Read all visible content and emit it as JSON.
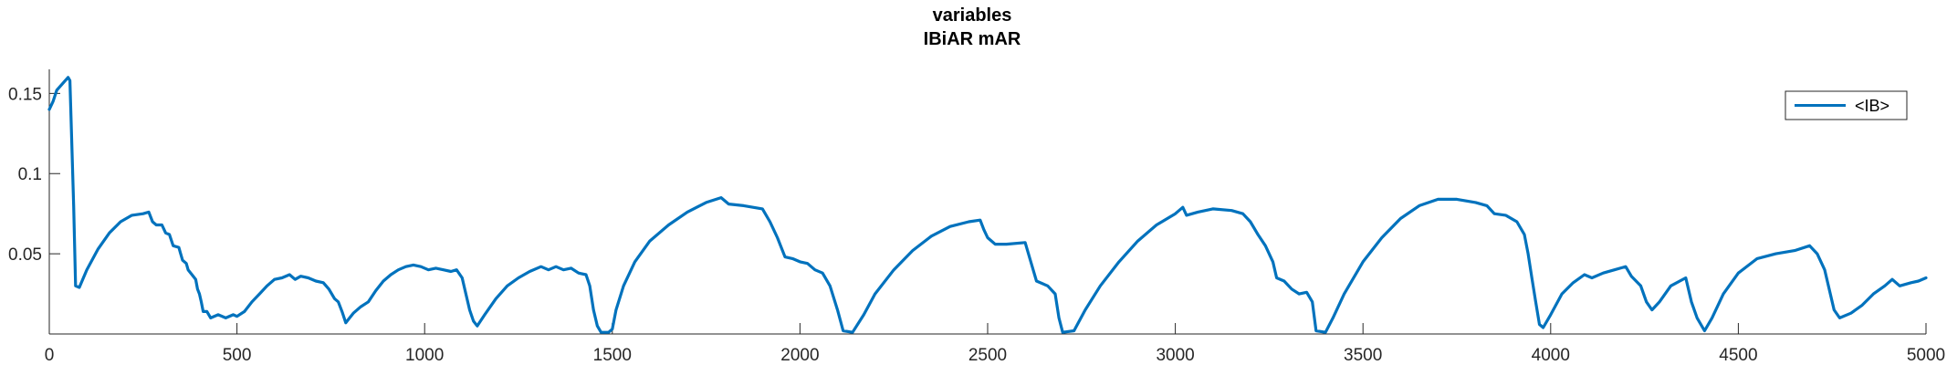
{
  "chart_data": {
    "type": "line",
    "title": "variables",
    "subtitle": "IBiAR mAR",
    "xlabel": "",
    "ylabel": "",
    "xlim": [
      0,
      5000
    ],
    "ylim": [
      0,
      0.165
    ],
    "x_ticks": [
      0,
      500,
      1000,
      1500,
      2000,
      2500,
      3000,
      3500,
      4000,
      4500,
      5000
    ],
    "x_tick_labels": [
      "0",
      "500",
      "1000",
      "1500",
      "2000",
      "2500",
      "3000",
      "3500",
      "4000",
      "4500",
      "5000"
    ],
    "y_ticks": [
      0.05,
      0.1,
      0.15
    ],
    "y_tick_labels": [
      "0.05",
      "0.1",
      "0.15"
    ],
    "grid": false,
    "legend_position": "top-right",
    "series": [
      {
        "name": "<IB>",
        "color": "#0072BD",
        "points": [
          [
            0,
            0.14
          ],
          [
            10,
            0.145
          ],
          [
            20,
            0.152
          ],
          [
            35,
            0.156
          ],
          [
            50,
            0.16
          ],
          [
            55,
            0.158
          ],
          [
            65,
            0.08
          ],
          [
            70,
            0.03
          ],
          [
            80,
            0.029
          ],
          [
            100,
            0.04
          ],
          [
            130,
            0.053
          ],
          [
            160,
            0.063
          ],
          [
            190,
            0.07
          ],
          [
            220,
            0.074
          ],
          [
            250,
            0.075
          ],
          [
            265,
            0.076
          ],
          [
            275,
            0.07
          ],
          [
            285,
            0.068
          ],
          [
            300,
            0.068
          ],
          [
            310,
            0.063
          ],
          [
            320,
            0.062
          ],
          [
            330,
            0.055
          ],
          [
            345,
            0.054
          ],
          [
            350,
            0.05
          ],
          [
            355,
            0.046
          ],
          [
            365,
            0.044
          ],
          [
            370,
            0.04
          ],
          [
            380,
            0.037
          ],
          [
            390,
            0.034
          ],
          [
            395,
            0.028
          ],
          [
            400,
            0.025
          ],
          [
            405,
            0.02
          ],
          [
            410,
            0.014
          ],
          [
            420,
            0.014
          ],
          [
            430,
            0.01
          ],
          [
            450,
            0.012
          ],
          [
            470,
            0.01
          ],
          [
            490,
            0.012
          ],
          [
            500,
            0.011
          ],
          [
            520,
            0.014
          ],
          [
            540,
            0.02
          ],
          [
            560,
            0.025
          ],
          [
            580,
            0.03
          ],
          [
            600,
            0.034
          ],
          [
            620,
            0.035
          ],
          [
            640,
            0.037
          ],
          [
            655,
            0.034
          ],
          [
            670,
            0.036
          ],
          [
            690,
            0.035
          ],
          [
            710,
            0.033
          ],
          [
            730,
            0.032
          ],
          [
            745,
            0.028
          ],
          [
            760,
            0.022
          ],
          [
            770,
            0.02
          ],
          [
            780,
            0.014
          ],
          [
            790,
            0.007
          ],
          [
            800,
            0.01
          ],
          [
            810,
            0.013
          ],
          [
            830,
            0.017
          ],
          [
            850,
            0.02
          ],
          [
            870,
            0.027
          ],
          [
            890,
            0.033
          ],
          [
            910,
            0.037
          ],
          [
            930,
            0.04
          ],
          [
            950,
            0.042
          ],
          [
            970,
            0.043
          ],
          [
            990,
            0.042
          ],
          [
            1010,
            0.04
          ],
          [
            1030,
            0.041
          ],
          [
            1050,
            0.04
          ],
          [
            1070,
            0.039
          ],
          [
            1085,
            0.04
          ],
          [
            1100,
            0.035
          ],
          [
            1110,
            0.025
          ],
          [
            1120,
            0.015
          ],
          [
            1130,
            0.008
          ],
          [
            1140,
            0.005
          ],
          [
            1160,
            0.012
          ],
          [
            1190,
            0.022
          ],
          [
            1220,
            0.03
          ],
          [
            1250,
            0.035
          ],
          [
            1280,
            0.039
          ],
          [
            1310,
            0.042
          ],
          [
            1330,
            0.04
          ],
          [
            1350,
            0.042
          ],
          [
            1370,
            0.04
          ],
          [
            1390,
            0.041
          ],
          [
            1410,
            0.038
          ],
          [
            1430,
            0.037
          ],
          [
            1440,
            0.03
          ],
          [
            1450,
            0.015
          ],
          [
            1460,
            0.005
          ],
          [
            1470,
            0.001
          ],
          [
            1490,
            0.001
          ],
          [
            1500,
            0.003
          ],
          [
            1510,
            0.015
          ],
          [
            1530,
            0.03
          ],
          [
            1560,
            0.045
          ],
          [
            1600,
            0.058
          ],
          [
            1650,
            0.068
          ],
          [
            1700,
            0.076
          ],
          [
            1750,
            0.082
          ],
          [
            1790,
            0.085
          ],
          [
            1810,
            0.081
          ],
          [
            1850,
            0.08
          ],
          [
            1900,
            0.078
          ],
          [
            1920,
            0.07
          ],
          [
            1940,
            0.06
          ],
          [
            1960,
            0.048
          ],
          [
            1980,
            0.047
          ],
          [
            2000,
            0.045
          ],
          [
            2020,
            0.044
          ],
          [
            2040,
            0.04
          ],
          [
            2060,
            0.038
          ],
          [
            2080,
            0.03
          ],
          [
            2100,
            0.015
          ],
          [
            2115,
            0.002
          ],
          [
            2140,
            0.001
          ],
          [
            2170,
            0.012
          ],
          [
            2200,
            0.025
          ],
          [
            2250,
            0.04
          ],
          [
            2300,
            0.052
          ],
          [
            2350,
            0.061
          ],
          [
            2400,
            0.067
          ],
          [
            2450,
            0.07
          ],
          [
            2480,
            0.071
          ],
          [
            2490,
            0.065
          ],
          [
            2500,
            0.06
          ],
          [
            2520,
            0.056
          ],
          [
            2550,
            0.056
          ],
          [
            2600,
            0.057
          ],
          [
            2615,
            0.045
          ],
          [
            2630,
            0.033
          ],
          [
            2660,
            0.03
          ],
          [
            2680,
            0.025
          ],
          [
            2690,
            0.01
          ],
          [
            2700,
            0.001
          ],
          [
            2730,
            0.002
          ],
          [
            2760,
            0.015
          ],
          [
            2800,
            0.03
          ],
          [
            2850,
            0.045
          ],
          [
            2900,
            0.058
          ],
          [
            2950,
            0.068
          ],
          [
            3000,
            0.075
          ],
          [
            3020,
            0.079
          ],
          [
            3030,
            0.074
          ],
          [
            3060,
            0.076
          ],
          [
            3100,
            0.078
          ],
          [
            3150,
            0.077
          ],
          [
            3180,
            0.075
          ],
          [
            3200,
            0.07
          ],
          [
            3220,
            0.062
          ],
          [
            3240,
            0.055
          ],
          [
            3260,
            0.045
          ],
          [
            3270,
            0.035
          ],
          [
            3290,
            0.033
          ],
          [
            3310,
            0.028
          ],
          [
            3330,
            0.025
          ],
          [
            3350,
            0.026
          ],
          [
            3365,
            0.02
          ],
          [
            3375,
            0.002
          ],
          [
            3400,
            0.001
          ],
          [
            3420,
            0.01
          ],
          [
            3450,
            0.025
          ],
          [
            3500,
            0.045
          ],
          [
            3550,
            0.06
          ],
          [
            3600,
            0.072
          ],
          [
            3650,
            0.08
          ],
          [
            3700,
            0.084
          ],
          [
            3750,
            0.084
          ],
          [
            3800,
            0.082
          ],
          [
            3830,
            0.08
          ],
          [
            3850,
            0.075
          ],
          [
            3880,
            0.074
          ],
          [
            3910,
            0.07
          ],
          [
            3930,
            0.062
          ],
          [
            3940,
            0.05
          ],
          [
            3950,
            0.035
          ],
          [
            3960,
            0.02
          ],
          [
            3970,
            0.006
          ],
          [
            3980,
            0.004
          ],
          [
            4000,
            0.012
          ],
          [
            4030,
            0.025
          ],
          [
            4060,
            0.032
          ],
          [
            4090,
            0.037
          ],
          [
            4110,
            0.035
          ],
          [
            4140,
            0.038
          ],
          [
            4170,
            0.04
          ],
          [
            4200,
            0.042
          ],
          [
            4215,
            0.036
          ],
          [
            4240,
            0.03
          ],
          [
            4255,
            0.02
          ],
          [
            4270,
            0.015
          ],
          [
            4290,
            0.02
          ],
          [
            4320,
            0.03
          ],
          [
            4360,
            0.035
          ],
          [
            4375,
            0.02
          ],
          [
            4390,
            0.01
          ],
          [
            4410,
            0.002
          ],
          [
            4430,
            0.01
          ],
          [
            4460,
            0.025
          ],
          [
            4500,
            0.038
          ],
          [
            4550,
            0.047
          ],
          [
            4600,
            0.05
          ],
          [
            4650,
            0.052
          ],
          [
            4690,
            0.055
          ],
          [
            4710,
            0.05
          ],
          [
            4730,
            0.04
          ],
          [
            4740,
            0.03
          ],
          [
            4755,
            0.015
          ],
          [
            4770,
            0.01
          ],
          [
            4800,
            0.013
          ],
          [
            4830,
            0.018
          ],
          [
            4860,
            0.025
          ],
          [
            4890,
            0.03
          ],
          [
            4910,
            0.034
          ],
          [
            4930,
            0.03
          ],
          [
            4960,
            0.032
          ],
          [
            4980,
            0.033
          ],
          [
            5000,
            0.035
          ]
        ]
      }
    ]
  }
}
